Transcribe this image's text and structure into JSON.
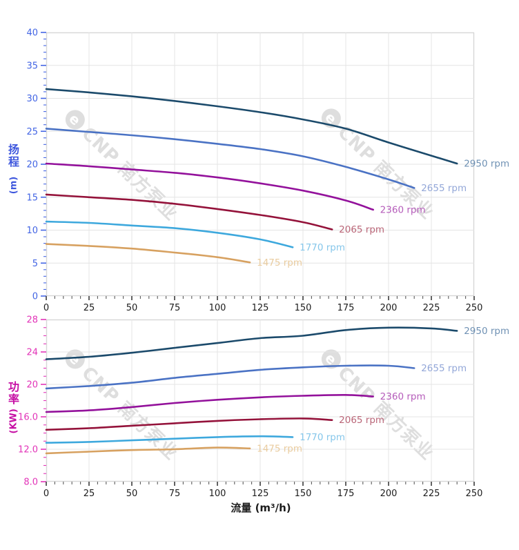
{
  "watermark": {
    "logo_glyph": "e",
    "text": "CNP 南方泵业",
    "color": "rgba(145,145,145,0.30)"
  },
  "x_axis_title": "流量 (m³/h)",
  "chart_data": [
    {
      "type": "line",
      "name": "head-vs-flow",
      "title": "",
      "xlabel": "流量 (m³/h)",
      "ylabel": "扬程 (m)",
      "ylabel_lines": [
        "扬",
        "程"
      ],
      "ylabel_unit": "(m)",
      "xlim": [
        0,
        250
      ],
      "ylim": [
        0,
        40
      ],
      "x_major_step": 25,
      "x_minor_step": 5,
      "y_major_step": 5,
      "y_minor_step": 1,
      "x_tick_labels": [
        "0",
        "25",
        "50",
        "75",
        "100",
        "125",
        "150",
        "175",
        "200",
        "225",
        "250"
      ],
      "y_tick_labels": [
        "0",
        "5",
        "10",
        "15",
        "20",
        "25",
        "30",
        "35",
        "40"
      ],
      "axis_color": "#4365e4",
      "title_color": "#3d56dd",
      "grid": true,
      "legend_position": "end-of-curve",
      "series": [
        {
          "name": "2950 rpm",
          "color": "#1b4a6b",
          "label_color": "#6f91b4",
          "points": [
            [
              0,
              31.4
            ],
            [
              25,
              30.9
            ],
            [
              50,
              30.3
            ],
            [
              75,
              29.6
            ],
            [
              100,
              28.8
            ],
            [
              125,
              27.9
            ],
            [
              150,
              26.8
            ],
            [
              175,
              25.4
            ],
            [
              200,
              23.3
            ],
            [
              225,
              21.3
            ],
            [
              240,
              20.1
            ]
          ]
        },
        {
          "name": "2655 rpm",
          "color": "#4a72c4",
          "label_color": "#93a7d8",
          "points": [
            [
              0,
              25.4
            ],
            [
              25,
              24.9
            ],
            [
              50,
              24.4
            ],
            [
              75,
              23.8
            ],
            [
              100,
              23.1
            ],
            [
              125,
              22.3
            ],
            [
              150,
              21.2
            ],
            [
              175,
              19.6
            ],
            [
              200,
              17.7
            ],
            [
              215,
              16.4
            ]
          ]
        },
        {
          "name": "2360 rpm",
          "color": "#93119b",
          "label_color": "#b55cba",
          "points": [
            [
              0,
              20.1
            ],
            [
              25,
              19.7
            ],
            [
              50,
              19.2
            ],
            [
              75,
              18.7
            ],
            [
              100,
              18.0
            ],
            [
              125,
              17.1
            ],
            [
              150,
              16.0
            ],
            [
              175,
              14.5
            ],
            [
              191,
              13.1
            ]
          ]
        },
        {
          "name": "2065 rpm",
          "color": "#94123a",
          "label_color": "#b96577",
          "points": [
            [
              0,
              15.4
            ],
            [
              25,
              15.0
            ],
            [
              50,
              14.6
            ],
            [
              75,
              14.0
            ],
            [
              100,
              13.2
            ],
            [
              125,
              12.3
            ],
            [
              150,
              11.2
            ],
            [
              167,
              10.1
            ]
          ]
        },
        {
          "name": "1770 rpm",
          "color": "#3da8dd",
          "label_color": "#85c6ea",
          "points": [
            [
              0,
              11.3
            ],
            [
              25,
              11.1
            ],
            [
              50,
              10.7
            ],
            [
              75,
              10.3
            ],
            [
              100,
              9.6
            ],
            [
              125,
              8.6
            ],
            [
              144,
              7.4
            ]
          ]
        },
        {
          "name": "1475 rpm",
          "color": "#d7a160",
          "label_color": "#e9cb9e",
          "points": [
            [
              0,
              7.9
            ],
            [
              25,
              7.6
            ],
            [
              50,
              7.2
            ],
            [
              75,
              6.6
            ],
            [
              100,
              5.9
            ],
            [
              119,
              5.1
            ]
          ]
        }
      ]
    },
    {
      "type": "line",
      "name": "power-vs-flow",
      "title": "",
      "xlabel": "流量 (m³/h)",
      "ylabel": "功率 (KW)",
      "ylabel_lines": [
        "功",
        "率"
      ],
      "ylabel_unit": "(KW)",
      "xlim": [
        0,
        250
      ],
      "ylim": [
        8,
        28
      ],
      "x_major_step": 25,
      "x_minor_step": 5,
      "y_major_step": 4,
      "y_minor_step": 1,
      "x_tick_labels": [
        "0",
        "25",
        "50",
        "75",
        "100",
        "125",
        "150",
        "175",
        "200",
        "225",
        "250"
      ],
      "y_tick_labels": [
        "8.0",
        "12.0",
        "16.0",
        "20",
        "24",
        "28"
      ],
      "axis_color": "#e233b8",
      "title_color": "#c60fa4",
      "grid": true,
      "legend_position": "end-of-curve",
      "series": [
        {
          "name": "2950 rpm",
          "color": "#1b4a6b",
          "label_color": "#6f91b4",
          "points": [
            [
              0,
              23.1
            ],
            [
              25,
              23.4
            ],
            [
              50,
              23.9
            ],
            [
              75,
              24.5
            ],
            [
              100,
              25.1
            ],
            [
              125,
              25.7
            ],
            [
              150,
              26.0
            ],
            [
              175,
              26.7
            ],
            [
              200,
              27.0
            ],
            [
              225,
              26.9
            ],
            [
              240,
              26.6
            ]
          ]
        },
        {
          "name": "2655 rpm",
          "color": "#4a72c4",
          "label_color": "#93a7d8",
          "points": [
            [
              0,
              19.5
            ],
            [
              25,
              19.8
            ],
            [
              50,
              20.2
            ],
            [
              75,
              20.8
            ],
            [
              100,
              21.3
            ],
            [
              125,
              21.8
            ],
            [
              150,
              22.1
            ],
            [
              175,
              22.3
            ],
            [
              200,
              22.3
            ],
            [
              215,
              22.0
            ]
          ]
        },
        {
          "name": "2360 rpm",
          "color": "#93119b",
          "label_color": "#b55cba",
          "points": [
            [
              0,
              16.6
            ],
            [
              25,
              16.8
            ],
            [
              50,
              17.2
            ],
            [
              75,
              17.7
            ],
            [
              100,
              18.1
            ],
            [
              125,
              18.4
            ],
            [
              150,
              18.6
            ],
            [
              175,
              18.7
            ],
            [
              191,
              18.5
            ]
          ]
        },
        {
          "name": "2065 rpm",
          "color": "#94123a",
          "label_color": "#b96577",
          "points": [
            [
              0,
              14.4
            ],
            [
              25,
              14.6
            ],
            [
              50,
              14.9
            ],
            [
              75,
              15.2
            ],
            [
              100,
              15.5
            ],
            [
              125,
              15.7
            ],
            [
              150,
              15.8
            ],
            [
              167,
              15.6
            ]
          ]
        },
        {
          "name": "1770 rpm",
          "color": "#3da8dd",
          "label_color": "#85c6ea",
          "points": [
            [
              0,
              12.8
            ],
            [
              25,
              12.9
            ],
            [
              50,
              13.1
            ],
            [
              75,
              13.3
            ],
            [
              100,
              13.5
            ],
            [
              125,
              13.6
            ],
            [
              144,
              13.5
            ]
          ]
        },
        {
          "name": "1475 rpm",
          "color": "#d7a160",
          "label_color": "#e9cb9e",
          "points": [
            [
              0,
              11.5
            ],
            [
              25,
              11.7
            ],
            [
              50,
              11.9
            ],
            [
              75,
              12.0
            ],
            [
              100,
              12.2
            ],
            [
              119,
              12.1
            ]
          ]
        }
      ]
    }
  ]
}
